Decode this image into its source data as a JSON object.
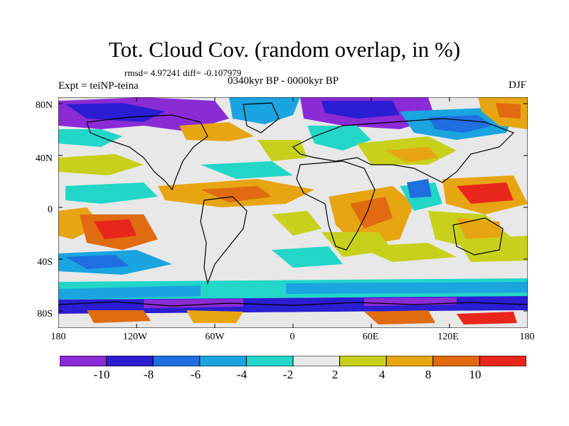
{
  "title": "Tot. Cloud Cov. (random overlap, in %)",
  "stats": "rmsd= 4.97241 diff= -0.107979",
  "period": "0340kyr BP - 0000kyr BP",
  "experiment": "Expt = teiNP-teina",
  "season": "DJF",
  "lat_labels": [
    "80N",
    "40N",
    "0",
    "40S",
    "80S"
  ],
  "lon_labels": [
    "180",
    "120W",
    "60W",
    "0",
    "60E",
    "120E",
    "180"
  ],
  "colorbar": {
    "colors": [
      "#8b2bd6",
      "#2b1dd1",
      "#1f6fe0",
      "#1aa4e0",
      "#22d6c8",
      "#e8e8e8",
      "#c7d11c",
      "#e8a512",
      "#e06b10",
      "#e8261b"
    ],
    "labels": [
      "-10",
      "-8",
      "-6",
      "-4",
      "-2",
      "2",
      "4",
      "8",
      "10"
    ]
  }
}
